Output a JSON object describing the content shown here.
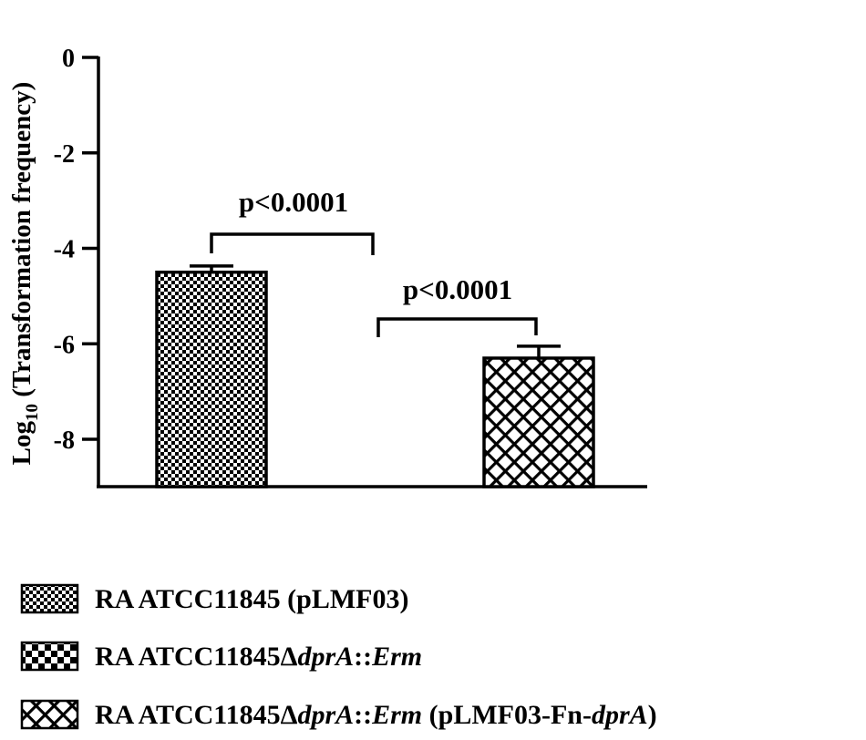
{
  "chart_data": {
    "type": "bar",
    "ylabel": "Log",
    "ylabel_sub": "10",
    "ylabel_rest": " (Transformation frequency)",
    "ylim": [
      -9,
      0
    ],
    "yticks": [
      "0",
      "-2",
      "-4",
      "-6",
      "-8"
    ],
    "ytick_values": [
      0,
      -2,
      -4,
      -6,
      -8
    ],
    "grid": false,
    "legend_position": "bottom",
    "series": [
      {
        "key": "s1",
        "name": "RA ATCC11845 (pLMF03)",
        "value": -4.5,
        "error": 0.13,
        "pattern": "fine-checker"
      },
      {
        "key": "s2",
        "name": "RA ATCC11845ΔdprA::Erm",
        "value": null,
        "error": null,
        "pattern": "coarse-checker"
      },
      {
        "key": "s3",
        "name": "RA ATCC11845ΔdprA::Erm (pLMF03-Fn-dprA)",
        "value": -6.3,
        "error": 0.25,
        "pattern": "crosshatch"
      }
    ],
    "legend_parts": {
      "s1": [
        {
          "t": "RA ATCC11845 (pLMF03)",
          "i": false
        }
      ],
      "s2": [
        {
          "t": "RA ATCC11845Δ",
          "i": false
        },
        {
          "t": "dprA",
          "i": true
        },
        {
          "t": "::",
          "i": false
        },
        {
          "t": "Erm",
          "i": true
        }
      ],
      "s3": [
        {
          "t": "RA ATCC11845Δ",
          "i": false
        },
        {
          "t": "dprA",
          "i": true
        },
        {
          "t": "::",
          "i": false
        },
        {
          "t": "Erm",
          "i": true
        },
        {
          "t": " (pLMF03-Fn-",
          "i": false
        },
        {
          "t": "dprA",
          "i": true
        },
        {
          "t": ")",
          "i": false
        }
      ]
    },
    "annotations": [
      {
        "text": "p<0.0001",
        "between": [
          "s1",
          "s2"
        ]
      },
      {
        "text": "p<0.0001",
        "between": [
          "s2",
          "s3"
        ]
      }
    ]
  }
}
